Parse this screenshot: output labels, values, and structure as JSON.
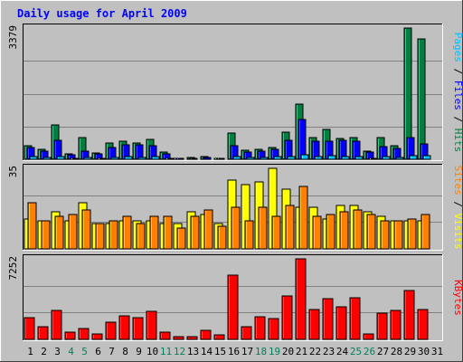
{
  "chart_data": {
    "type": "bar",
    "title": "Daily usage for April 2009",
    "categories": [
      "1",
      "2",
      "3",
      "4",
      "5",
      "6",
      "7",
      "8",
      "9",
      "10",
      "11",
      "12",
      "13",
      "14",
      "15",
      "16",
      "17",
      "18",
      "19",
      "20",
      "21",
      "22",
      "23",
      "24",
      "25",
      "26",
      "27",
      "28",
      "29",
      "30",
      "31"
    ],
    "weekend_days": [
      "4",
      "5",
      "11",
      "12",
      "18",
      "19",
      "25",
      "26"
    ],
    "panels": [
      {
        "id": "hits-files-pages",
        "ymax_label": "3379",
        "ylim": [
          0,
          3379
        ],
        "side_legend": [
          "Pages",
          "Files",
          "Hits"
        ],
        "series": [
          {
            "name": "Hits",
            "color": "#008040",
            "values": [
              360,
              250,
              880,
              140,
              550,
              160,
              420,
              460,
              420,
              520,
              180,
              20,
              40,
              60,
              20,
              680,
              230,
              260,
              300,
              700,
              1420,
              570,
              780,
              540,
              550,
              220,
              570,
              340,
              3379,
              3100,
              0
            ]
          },
          {
            "name": "Files",
            "color": "#0000ff",
            "values": [
              300,
              200,
              490,
              120,
              200,
              130,
              300,
              380,
              380,
              340,
              140,
              15,
              30,
              40,
              15,
              340,
              180,
              220,
              250,
              480,
              1020,
              460,
              460,
              500,
              470,
              180,
              330,
              270,
              560,
              390,
              0
            ]
          },
          {
            "name": "Pages",
            "color": "#00c0ff",
            "values": [
              60,
              40,
              70,
              30,
              40,
              30,
              50,
              60,
              55,
              70,
              30,
              5,
              10,
              10,
              5,
              70,
              40,
              50,
              60,
              80,
              120,
              80,
              90,
              80,
              70,
              30,
              60,
              50,
              100,
              90,
              0
            ]
          }
        ]
      },
      {
        "id": "visits-sites",
        "ymax_label": "35",
        "ylim": [
          0,
          35
        ],
        "side_legend": [
          "Sites",
          "Visits"
        ],
        "series": [
          {
            "name": "Visits",
            "color": "#ffff00",
            "values": [
              13,
              12,
              16,
              12,
              20,
              11,
              11,
              12,
              12,
              12,
              11,
              11,
              16,
              15,
              11,
              30,
              28,
              29,
              35,
              26,
              18,
              18,
              13,
              19,
              19,
              16,
              14,
              12,
              12,
              12,
              0
            ]
          },
          {
            "name": "Sites",
            "color": "#ff8000",
            "values": [
              20,
              12,
              14,
              15,
              17,
              11,
              12,
              14,
              11,
              14,
              14,
              9,
              14,
              17,
              10,
              18,
              12,
              18,
              14,
              19,
              27,
              14,
              15,
              16,
              17,
              15,
              12,
              12,
              13,
              15,
              0
            ]
          }
        ]
      },
      {
        "id": "kbytes",
        "ymax_label": "7252",
        "ylim": [
          0,
          7252
        ],
        "side_legend": [
          "KBytes"
        ],
        "series": [
          {
            "name": "KBytes",
            "color": "#ff0000",
            "values": [
              1950,
              1150,
              2580,
              620,
              950,
              520,
              1550,
              2150,
              1950,
              2500,
              620,
              250,
              250,
              850,
              420,
              5800,
              1150,
              2050,
              1850,
              3950,
              7252,
              2650,
              3650,
              2950,
              3750,
              520,
              2350,
              2580,
              4400,
              2650,
              0
            ]
          }
        ]
      }
    ]
  },
  "colors": {
    "background": "#c0c0c0",
    "title": "#0000ff",
    "weekday_label": "#000000",
    "weekend_label": "#00805c",
    "gridline": "#808080"
  },
  "legend_separator": "/"
}
